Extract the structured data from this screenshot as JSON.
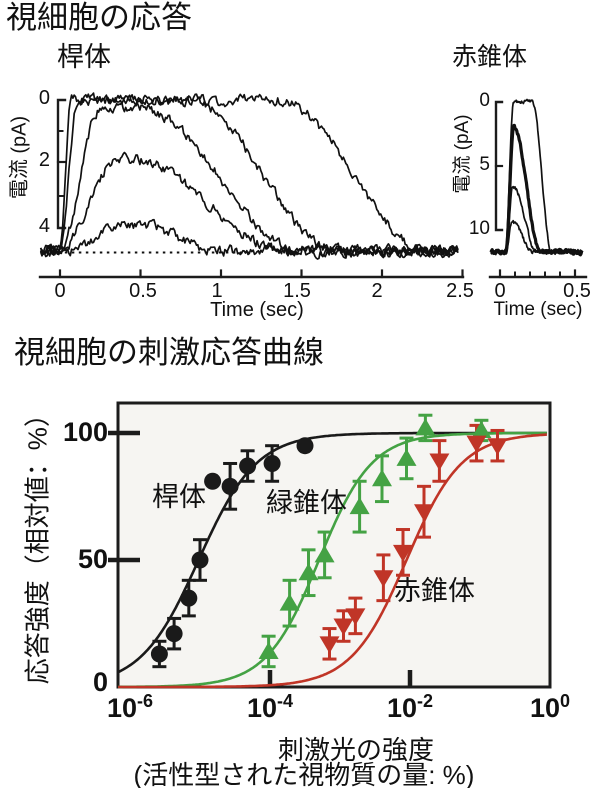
{
  "ui": {
    "main_title": "視細胞の応答"
  },
  "colors": {
    "trace_black": "#111111",
    "frame": "#1c1c1c",
    "plot_bg": "#f6f5f2",
    "rod_series": "#1a1a1a",
    "green_cone": "#44a244",
    "red_cone": "#c03527"
  },
  "chart_data": [
    {
      "id": "rod-flash-responses",
      "type": "line",
      "title": "桿体",
      "ylabel": "電流 (pA)",
      "xlabel": "Time (sec)",
      "xlim_sec": [
        -0.12,
        2.48
      ],
      "xticks": [
        0,
        0.5,
        1,
        1.5,
        2,
        2.5
      ],
      "xtick_labels": [
        "0",
        "0.5",
        "1",
        "1.5",
        "2",
        "2.5"
      ],
      "y_inverted": true,
      "yticks": [
        0,
        2,
        4
      ],
      "ytick_labels": [
        "0",
        "2",
        "4"
      ],
      "yticks_minor": [
        1,
        3
      ],
      "baseline_pA": 4.72,
      "noise_pA": 0.16,
      "dotted_baseline_t": [
        0.03,
        1.2
      ],
      "traces": [
        {
          "peak_pA": 4.72,
          "rise_start_s": 0.0,
          "rise_dur_s": 0.07,
          "plateau_end_s": 1.35,
          "decay_end_s": 2.3,
          "bold": false
        },
        {
          "peak_pA": 4.72,
          "rise_start_s": 0.0,
          "rise_dur_s": 0.11,
          "plateau_end_s": 0.8,
          "decay_end_s": 1.72,
          "bold": false
        },
        {
          "peak_pA": 4.45,
          "rise_start_s": 0.0,
          "rise_dur_s": 0.25,
          "plateau_end_s": 0.5,
          "decay_end_s": 1.5,
          "bold": false
        },
        {
          "peak_pA": 2.85,
          "rise_start_s": 0.0,
          "rise_dur_s": 0.35,
          "plateau_end_s": 0.45,
          "decay_end_s": 1.42,
          "bold": false
        },
        {
          "peak_pA": 0.8,
          "rise_start_s": 0.02,
          "rise_dur_s": 0.4,
          "plateau_end_s": 0.5,
          "decay_end_s": 0.98,
          "bold": false
        }
      ]
    },
    {
      "id": "red-cone-flash-responses",
      "type": "line",
      "title": "赤錐体",
      "ylabel": "電流 (pA)",
      "xlabel": "Time (sec)",
      "xlim_sec": [
        -0.06,
        0.55
      ],
      "xticks": [
        0,
        0.5
      ],
      "xtick_labels": [
        "0",
        "0.5"
      ],
      "xticks_minor": [
        0,
        0.1,
        0.2,
        0.3,
        0.4,
        0.5
      ],
      "y_inverted": true,
      "yticks": [
        0,
        5,
        10
      ],
      "ytick_labels": [
        "0",
        "5",
        "10"
      ],
      "baseline_pA": 11.7,
      "noise_pA": 0.15,
      "traces": [
        {
          "peak_pA": 11.7,
          "rise_start_s": 0.035,
          "rise_dur_s": 0.055,
          "plateau_end_s": 0.215,
          "decay_end_s": 0.345,
          "bold": false
        },
        {
          "peak_pA": 9.7,
          "rise_start_s": 0.04,
          "rise_dur_s": 0.05,
          "plateau_end_s": 0.092,
          "decay_end_s": 0.27,
          "bold": true
        },
        {
          "peak_pA": 5.1,
          "rise_start_s": 0.04,
          "rise_dur_s": 0.045,
          "plateau_end_s": 0.087,
          "decay_end_s": 0.245,
          "bold": false
        },
        {
          "peak_pA": 2.3,
          "rise_start_s": 0.04,
          "rise_dur_s": 0.04,
          "plateau_end_s": 0.082,
          "decay_end_s": 0.22,
          "bold": false
        }
      ]
    },
    {
      "id": "stimulus-response-curves",
      "type": "scatter",
      "title": "視細胞の刺激応答曲線",
      "ylabel": "応答強度（相対値：%）",
      "xlabel_line1": "刺激光の強度",
      "xlabel_line2": "(活性型された視物質の量: %)",
      "x_scale": "log10",
      "xlim_log10": [
        -6.17,
        -0.04
      ],
      "xticks_log10": [
        -6,
        -4,
        -2,
        0
      ],
      "xtick_labels": [
        {
          "base": "10",
          "exp": "-6"
        },
        {
          "base": "10",
          "exp": "-4"
        },
        {
          "base": "10",
          "exp": "-2"
        },
        {
          "base": "10",
          "exp": "0"
        }
      ],
      "xtick_marks_log10": [
        -4,
        -2
      ],
      "ylim": [
        0,
        112
      ],
      "yticks": [
        0,
        50,
        100
      ],
      "ytick_labels": [
        "0",
        "50",
        "100"
      ],
      "ytick_marks": [
        50,
        100
      ],
      "point_format": [
        "log10_intensity",
        "response_pct",
        "error_pct"
      ],
      "series": [
        {
          "name": "桿体",
          "marker": "circle",
          "color": "#1a1a1a",
          "hill_k_log10": -5.02,
          "hill_n": 1.05,
          "points": [
            [
              -5.58,
              13,
              5
            ],
            [
              -5.37,
              21,
              6
            ],
            [
              -5.16,
              35,
              7
            ],
            [
              -5.0,
              50,
              8
            ],
            [
              -4.82,
              81,
              0
            ],
            [
              -4.57,
              79,
              9
            ],
            [
              -4.32,
              87,
              6
            ],
            [
              -3.97,
              88,
              7
            ],
            [
              -3.5,
              95,
              0
            ]
          ]
        },
        {
          "name": "緑錐体",
          "marker": "triangle-up",
          "color": "#44a244",
          "hill_k_log10": -3.3,
          "hill_n": 1.15,
          "points": [
            [
              -4.02,
              14,
              6
            ],
            [
              -3.72,
              33,
              9
            ],
            [
              -3.45,
              45,
              9
            ],
            [
              -3.22,
              52,
              9
            ],
            [
              -2.72,
              71,
              10
            ],
            [
              -2.4,
              82,
              9
            ],
            [
              -2.05,
              90,
              8
            ],
            [
              -1.78,
              102,
              5
            ],
            [
              -0.98,
              101,
              4
            ]
          ]
        },
        {
          "name": "赤錐体",
          "marker": "triangle-down",
          "color": "#c03527",
          "hill_k_log10": -2.05,
          "hill_n": 1.1,
          "points": [
            [
              -3.15,
              17,
              6
            ],
            [
              -2.95,
              24,
              6
            ],
            [
              -2.78,
              28,
              7
            ],
            [
              -2.38,
              43,
              9
            ],
            [
              -2.1,
              53,
              9
            ],
            [
              -1.8,
              69,
              10
            ],
            [
              -1.58,
              89,
              8
            ],
            [
              -1.05,
              96,
              7
            ],
            [
              -0.75,
              95,
              6
            ]
          ]
        }
      ]
    }
  ]
}
